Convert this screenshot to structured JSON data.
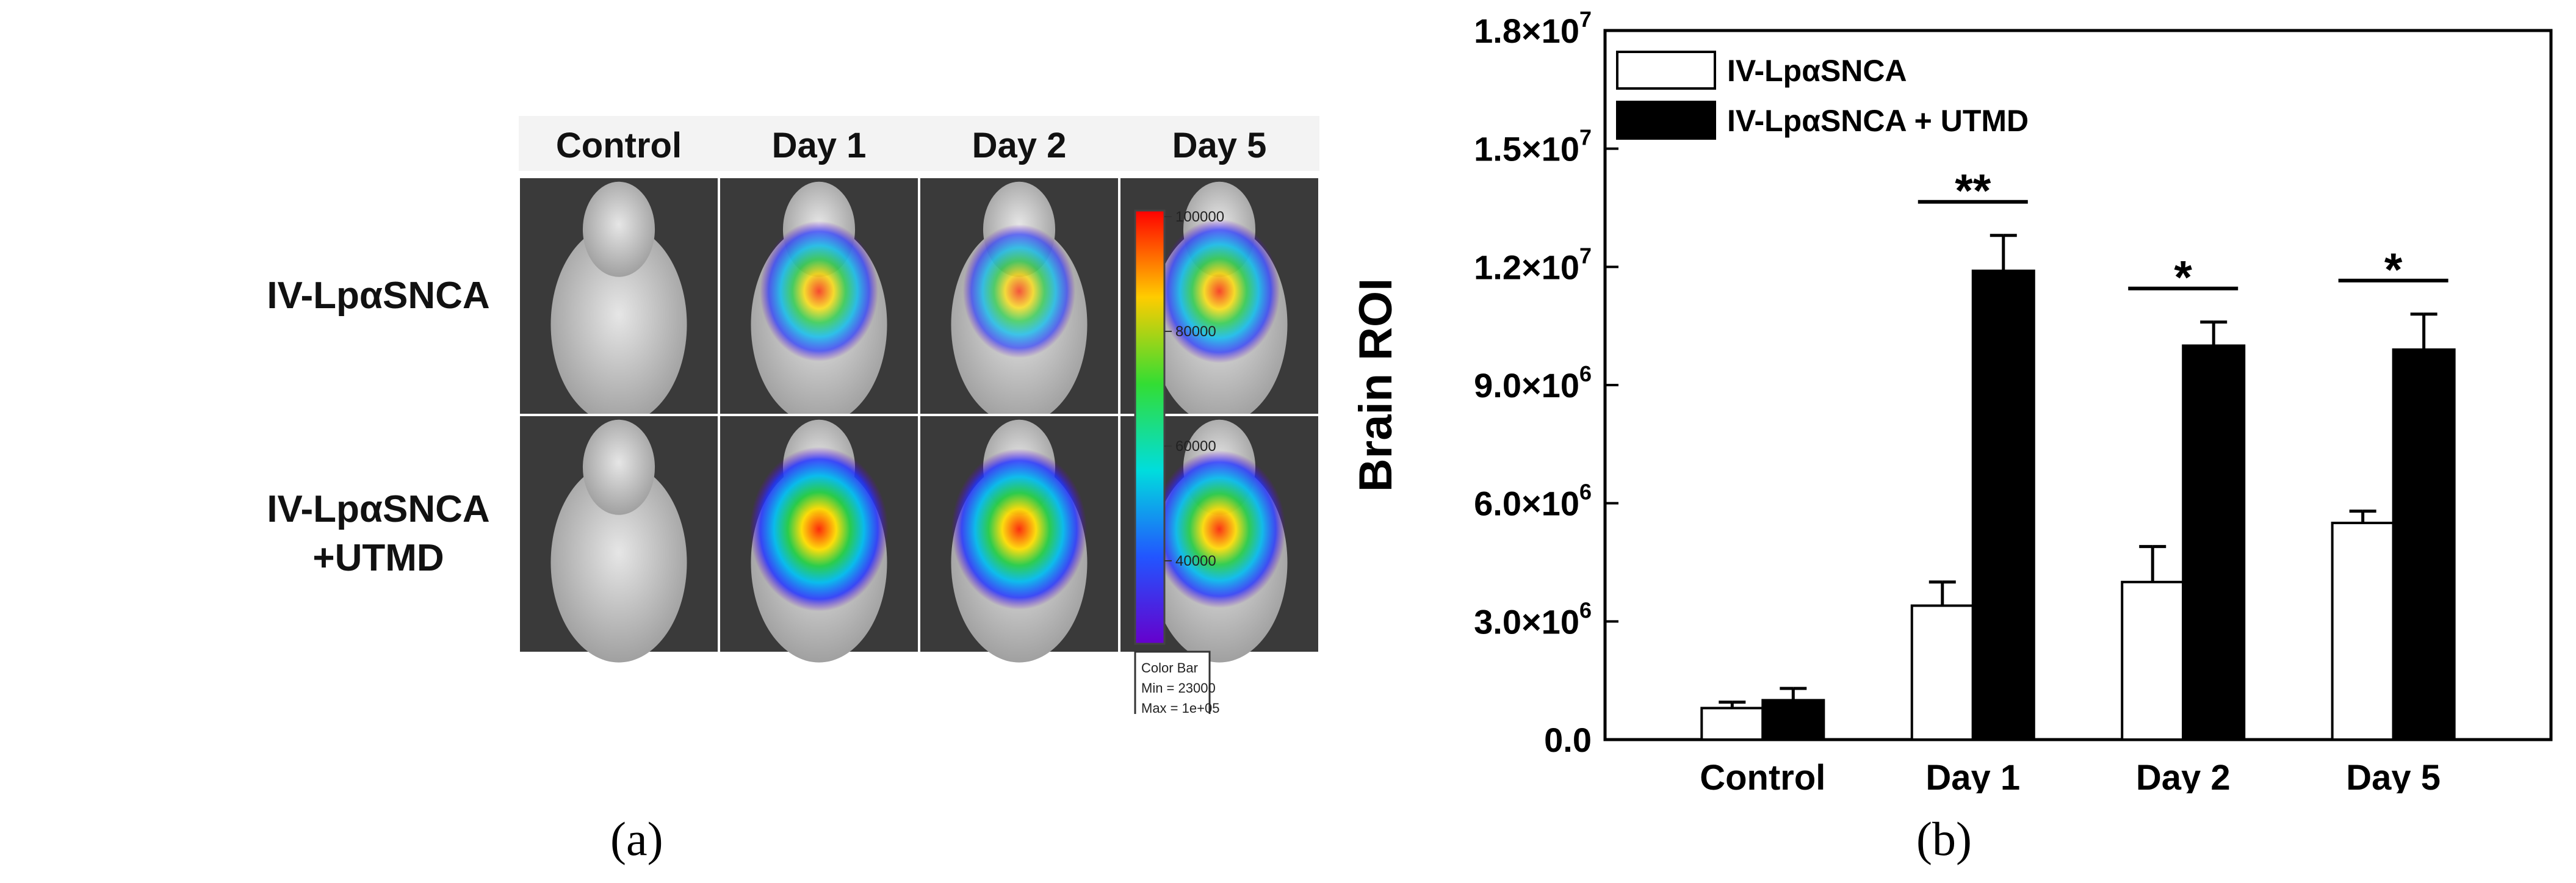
{
  "panel_a": {
    "caption": "(a)",
    "columns": [
      "Control",
      "Day 1",
      "Day 2",
      "Day 5"
    ],
    "rows": [
      {
        "line1": "IV-LpαSNCA",
        "line2": ""
      },
      {
        "line1": "IV-LpαSNCA",
        "line2": "+UTMD"
      }
    ],
    "colorbar": {
      "ticks": [
        "100000",
        "80000",
        "60000",
        "40000"
      ],
      "info": [
        "Color Bar",
        "Min = 23000",
        "Max = 1e+05"
      ]
    },
    "intensity": [
      [
        0,
        0.55,
        0.45,
        0.6
      ],
      [
        0,
        0.9,
        0.85,
        0.8
      ]
    ]
  },
  "panel_b": {
    "caption": "(b)"
  },
  "chart_data": {
    "type": "bar",
    "categories": [
      "Control",
      "Day 1",
      "Day 2",
      "Day 5"
    ],
    "series": [
      {
        "name": "IV-LpαSNCA",
        "fill": "#ffffff",
        "values": [
          800000,
          3400000,
          4000000,
          5500000
        ],
        "errors": [
          150000,
          600000,
          900000,
          300000
        ]
      },
      {
        "name": "IV-LpαSNCA + UTMD",
        "fill": "#000000",
        "values": [
          1000000,
          11900000,
          10000000,
          9900000
        ],
        "errors": [
          300000,
          900000,
          600000,
          900000
        ]
      }
    ],
    "ylabel": "Brain ROI",
    "xlabel": "",
    "ylim": [
      0,
      18000000
    ],
    "yticks": [
      {
        "value": 0,
        "mant": "0.0",
        "exp": ""
      },
      {
        "value": 3000000,
        "mant": "3.0×10",
        "exp": "6"
      },
      {
        "value": 6000000,
        "mant": "6.0×10",
        "exp": "6"
      },
      {
        "value": 9000000,
        "mant": "9.0×10",
        "exp": "6"
      },
      {
        "value": 12000000,
        "mant": "1.2×10",
        "exp": "7"
      },
      {
        "value": 15000000,
        "mant": "1.5×10",
        "exp": "7"
      },
      {
        "value": 18000000,
        "mant": "1.8×10",
        "exp": "7"
      }
    ],
    "significance": [
      "",
      "**",
      "*",
      "*"
    ],
    "legend_position": "top-left",
    "grid": false
  }
}
